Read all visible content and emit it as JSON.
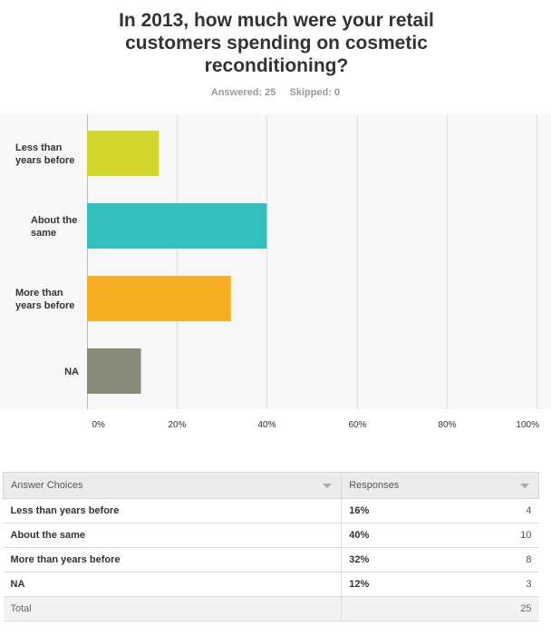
{
  "question": {
    "title_lines": [
      "In 2013, how much were your retail",
      "customers spending on cosmetic",
      "reconditioning?"
    ],
    "answered": "Answered: 25",
    "skipped": "Skipped: 0"
  },
  "chart_data": {
    "type": "bar",
    "orientation": "horizontal",
    "categories": [
      [
        "Less than",
        "years before"
      ],
      [
        "About the",
        "same"
      ],
      [
        "More than",
        "years before"
      ],
      [
        "NA"
      ]
    ],
    "values": [
      16,
      40,
      32,
      12
    ],
    "colors": [
      "#d3d72d",
      "#32bfbf",
      "#f5ae22",
      "#8a8a78"
    ],
    "xlim": [
      0,
      100
    ],
    "ticks": [
      "0%",
      "20%",
      "40%",
      "60%",
      "80%",
      "100%"
    ],
    "grid": true
  },
  "table": {
    "headers": [
      "Answer Choices",
      "Responses"
    ],
    "rows": [
      {
        "choice": "Less than years before",
        "percent": "16%",
        "count": "4"
      },
      {
        "choice": "About the same",
        "percent": "40%",
        "count": "10"
      },
      {
        "choice": "More than years before",
        "percent": "32%",
        "count": "8"
      },
      {
        "choice": "NA",
        "percent": "12%",
        "count": "3"
      }
    ],
    "total_label": "Total",
    "total_count": "25"
  }
}
